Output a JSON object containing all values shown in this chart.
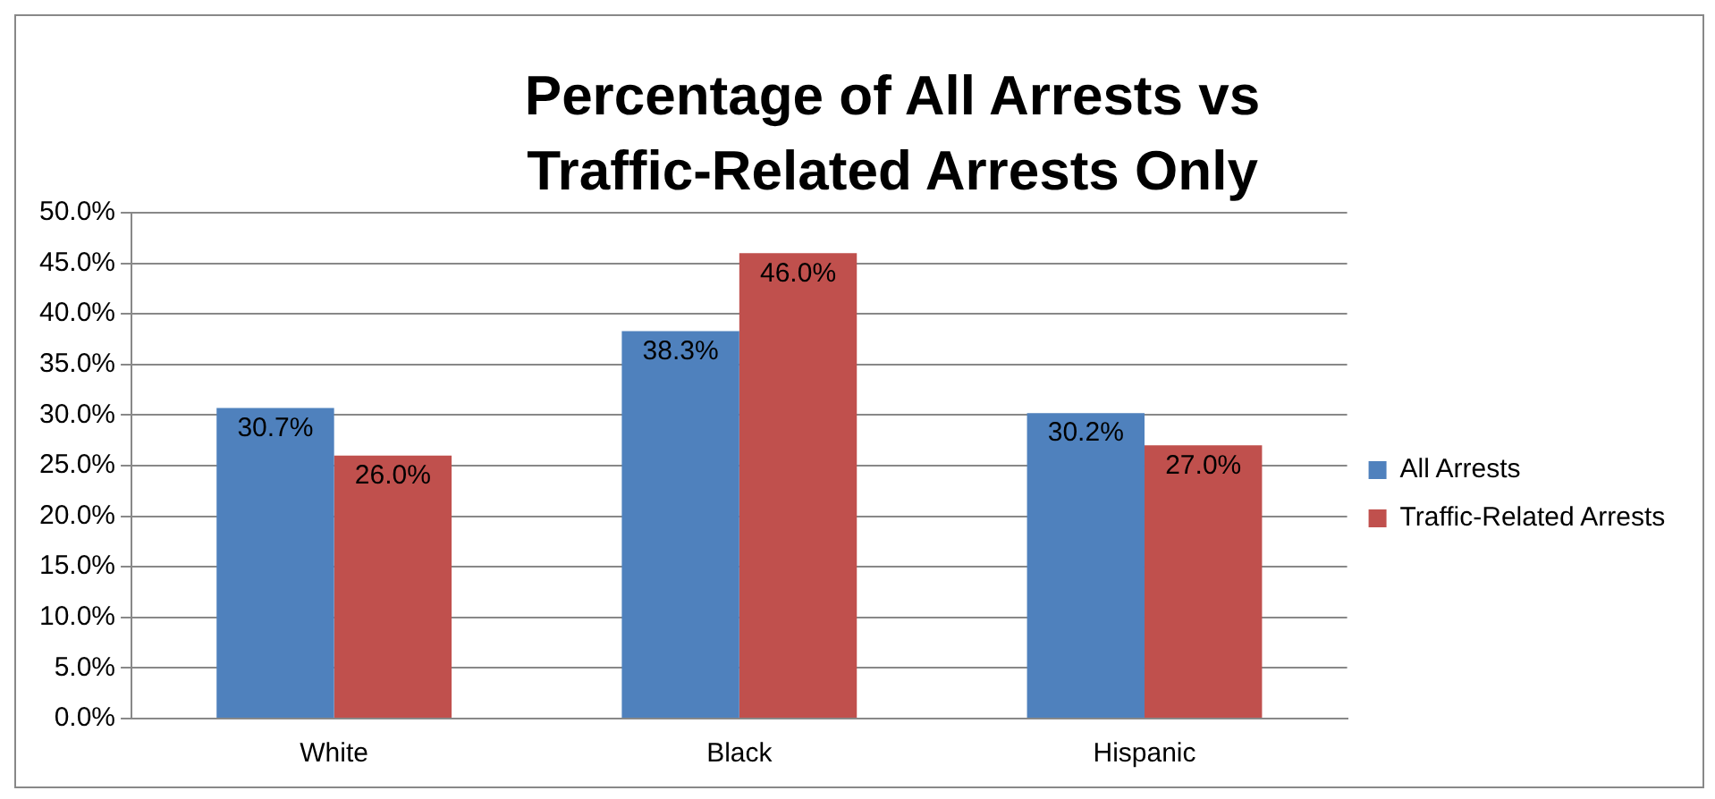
{
  "chart_data": {
    "type": "bar",
    "title": "Percentage of All Arrests vs Traffic-Related Arrests Only",
    "categories": [
      "White",
      "Black",
      "Hispanic"
    ],
    "series": [
      {
        "name": "All Arrests",
        "color": "#4f81bd",
        "values": [
          30.7,
          38.3,
          30.2
        ],
        "value_labels": [
          "30.7%",
          "38.3%",
          "30.2%"
        ]
      },
      {
        "name": "Traffic-Related Arrests",
        "color": "#c0504d",
        "values": [
          26.0,
          46.0,
          27.0
        ],
        "value_labels": [
          "26.0%",
          "46.0%",
          "27.0%"
        ]
      }
    ],
    "ylim": [
      0,
      50
    ],
    "yticks": [
      {
        "value": 0,
        "label": "0.0%"
      },
      {
        "value": 5,
        "label": "5.0%"
      },
      {
        "value": 10,
        "label": "10.0%"
      },
      {
        "value": 15,
        "label": "15.0%"
      },
      {
        "value": 20,
        "label": "20.0%"
      },
      {
        "value": 25,
        "label": "25.0%"
      },
      {
        "value": 30,
        "label": "30.0%"
      },
      {
        "value": 35,
        "label": "35.0%"
      },
      {
        "value": 40,
        "label": "40.0%"
      },
      {
        "value": 45,
        "label": "45.0%"
      },
      {
        "value": 50,
        "label": "50.0%"
      }
    ],
    "grid": "y",
    "legend": "right"
  }
}
